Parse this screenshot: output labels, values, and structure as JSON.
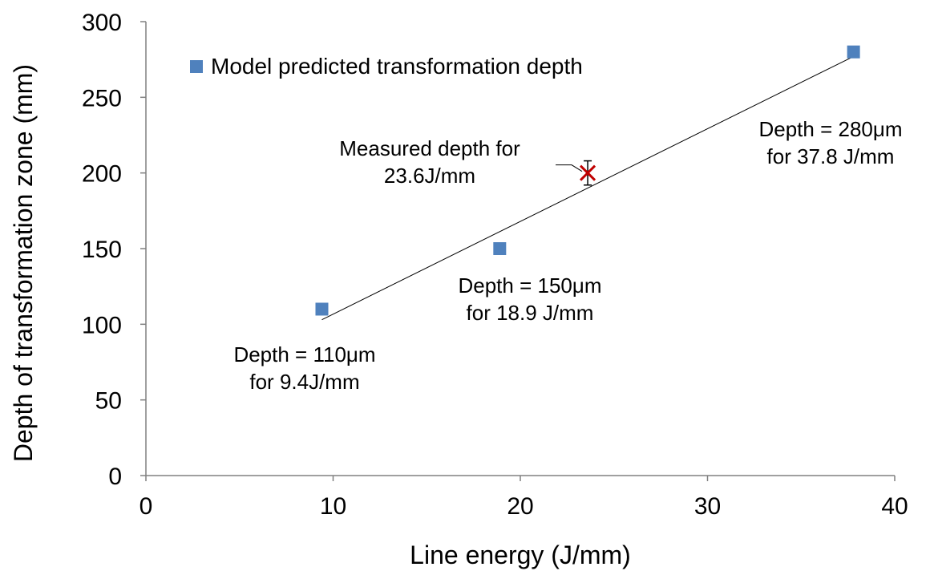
{
  "chart_data": {
    "type": "scatter",
    "xlabel": "Line energy (J/mm)",
    "ylabel": "Depth of transformation zone (mm)",
    "xlim": [
      0,
      40
    ],
    "ylim": [
      0,
      300
    ],
    "x_ticks": [
      0,
      10,
      20,
      30,
      40
    ],
    "y_ticks": [
      0,
      50,
      100,
      150,
      200,
      250,
      300
    ],
    "grid": false,
    "legend_position": "top-left",
    "series": [
      {
        "name": "Model predicted transformation depth",
        "color": "#4f81bd",
        "marker": "square",
        "points": [
          {
            "x": 9.4,
            "y": 110
          },
          {
            "x": 18.9,
            "y": 150
          },
          {
            "x": 37.8,
            "y": 280
          }
        ]
      }
    ],
    "trendline": {
      "type": "linear",
      "color": "#000000",
      "x": [
        9.4,
        37.8
      ],
      "y": [
        103,
        277
      ]
    },
    "measured": {
      "x": 23.6,
      "y": 200,
      "error_low": 192,
      "error_high": 208,
      "marker": "x",
      "color": "#c00000"
    },
    "annotations": [
      {
        "id": "p1",
        "lines": [
          "Depth = 110μm",
          "for 9.4J/mm"
        ]
      },
      {
        "id": "p2",
        "lines": [
          "Depth = 150μm",
          "for 18.9 J/mm"
        ]
      },
      {
        "id": "p3",
        "lines": [
          "Depth = 280μm",
          "for 37.8 J/mm"
        ]
      },
      {
        "id": "meas",
        "lines": [
          "Measured depth for",
          "23.6J/mm"
        ]
      }
    ]
  }
}
